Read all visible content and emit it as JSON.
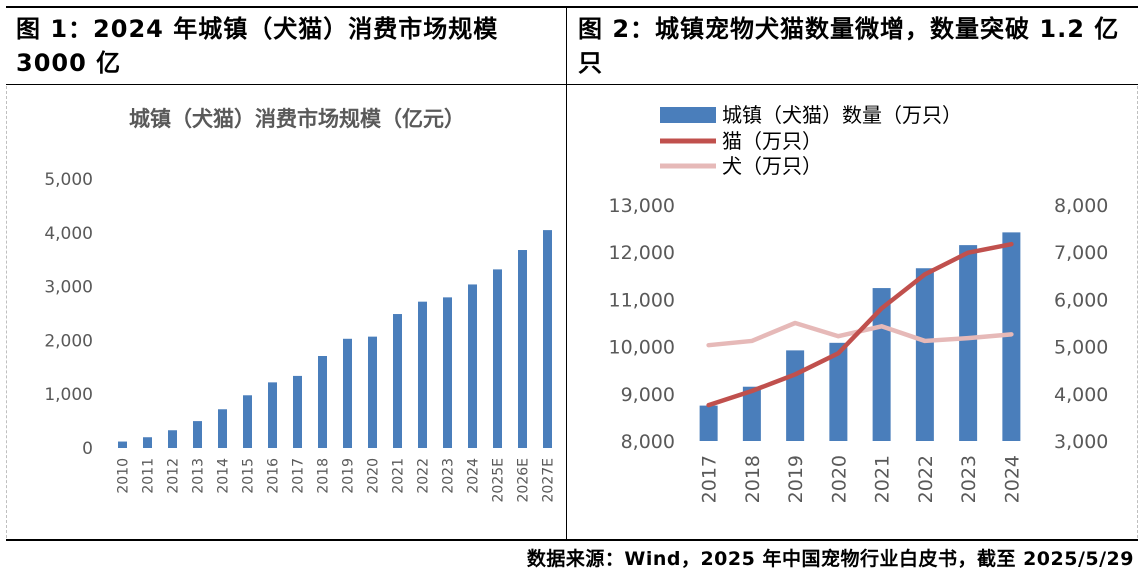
{
  "left": {
    "figure_title": "图 1：2024 年城镇（犬猫）消费市场规模 3000 亿"
  },
  "right": {
    "figure_title": "图 2：城镇宠物犬猫数量微增，数量突破 1.2 亿只"
  },
  "source": "数据来源：Wind，2025 年中国宠物行业白皮书，截至 2025/5/29",
  "colors": {
    "bar": "#4a7ebb",
    "cat_line": "#c0504d",
    "dog_line": "#e6b9b8",
    "axis_text": "#595959"
  },
  "chart_data": [
    {
      "type": "bar",
      "title": "城镇（犬猫）消费市场规模（亿元）",
      "categories": [
        "2010",
        "2011",
        "2012",
        "2013",
        "2014",
        "2015",
        "2016",
        "2017",
        "2018",
        "2019",
        "2020",
        "2021",
        "2022",
        "2023",
        "2024",
        "2025E",
        "2026E",
        "2027E"
      ],
      "values": [
        120,
        200,
        330,
        500,
        720,
        980,
        1220,
        1340,
        1710,
        2030,
        2070,
        2490,
        2720,
        2800,
        3040,
        3320,
        3680,
        4050
      ],
      "ylim": [
        0,
        5000
      ],
      "yticks": [
        "0",
        "1,000",
        "2,000",
        "3,000",
        "4,000",
        "5,000"
      ],
      "xlabel": "",
      "ylabel": "",
      "grid": false
    },
    {
      "type": "bar",
      "categories": [
        "2017",
        "2018",
        "2019",
        "2020",
        "2021",
        "2022",
        "2023",
        "2024"
      ],
      "series": [
        {
          "name": "城镇（犬猫）数量（万只）",
          "type": "bar",
          "axis": "left",
          "values": [
            8750,
            9150,
            9920,
            10080,
            11240,
            11660,
            12150,
            12420
          ]
        },
        {
          "name": "猫（万只）",
          "type": "line",
          "axis": "right",
          "values": [
            3760,
            4060,
            4410,
            4860,
            5810,
            6530,
            6990,
            7170
          ]
        },
        {
          "name": "犬（万只）",
          "type": "line",
          "axis": "right",
          "values": [
            5030,
            5120,
            5500,
            5220,
            5430,
            5120,
            5180,
            5260
          ]
        }
      ],
      "ylim_left": [
        8000,
        13000
      ],
      "ylim_right": [
        3000,
        8000
      ],
      "yticks_left": [
        "8,000",
        "9,000",
        "10,000",
        "11,000",
        "12,000",
        "13,000"
      ],
      "yticks_right": [
        "3,000",
        "4,000",
        "5,000",
        "6,000",
        "7,000",
        "8,000"
      ],
      "legend_position": "top-left",
      "grid": false
    }
  ]
}
